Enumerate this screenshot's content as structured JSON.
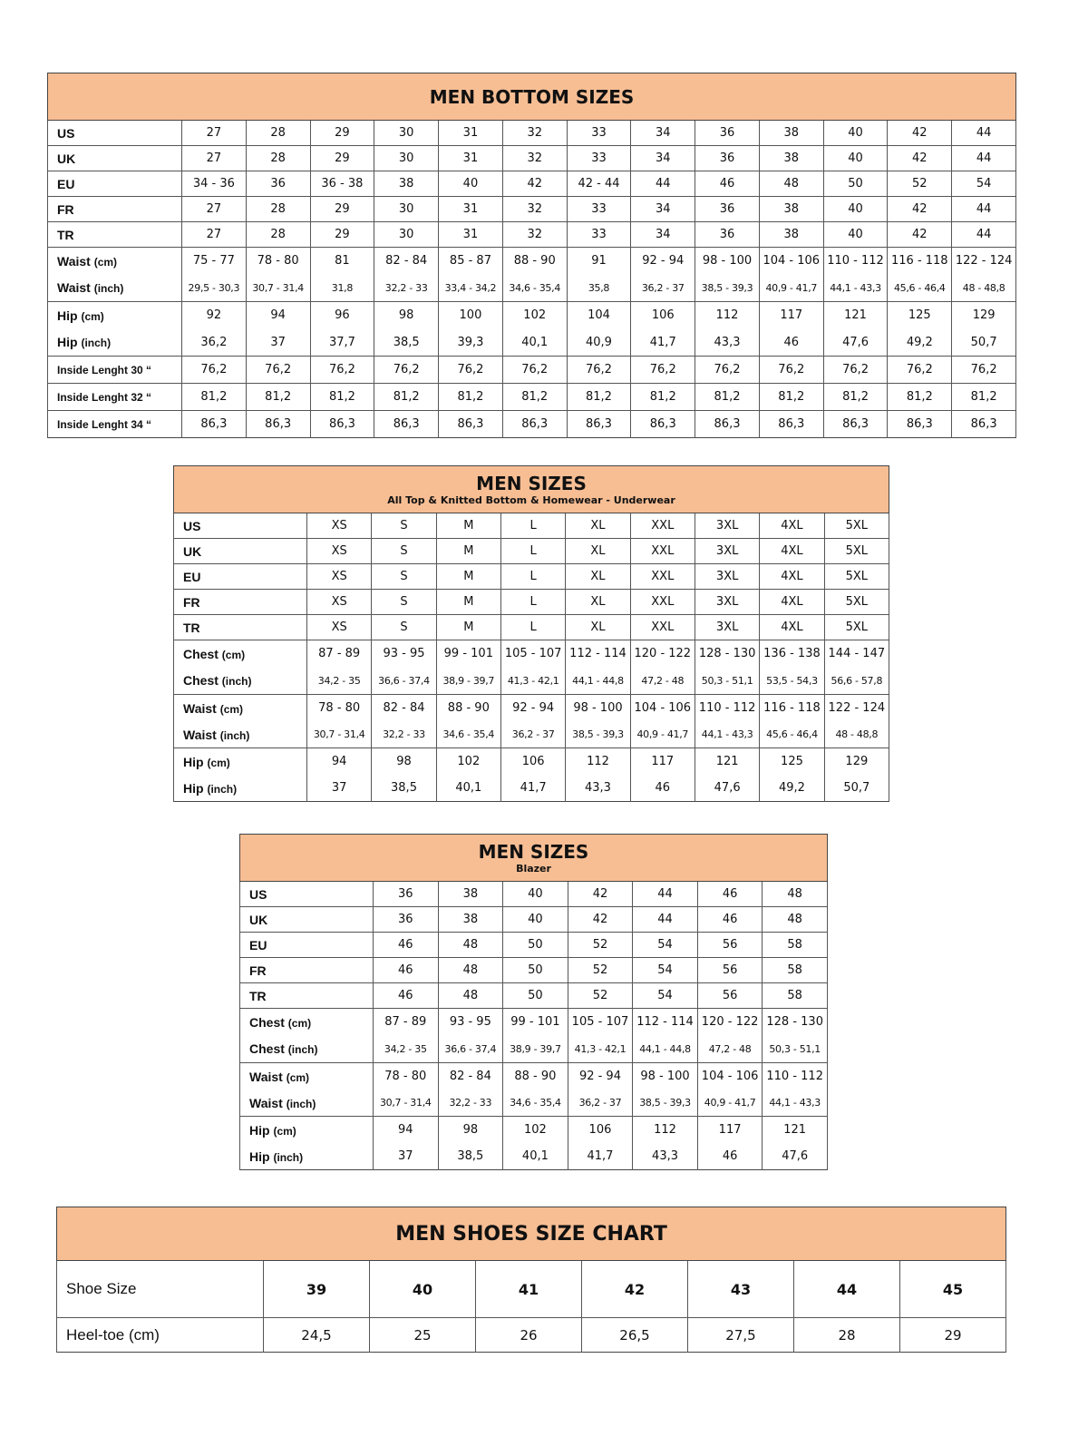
{
  "header_color": "#F7BE94",
  "tables": [
    {
      "title": "MEN BOTTOM SIZES",
      "subtitle": "",
      "rows": [
        {
          "label": "US",
          "unit": "",
          "values": [
            "27",
            "28",
            "29",
            "30",
            "31",
            "32",
            "33",
            "34",
            "36",
            "38",
            "40",
            "42",
            "44"
          ]
        },
        {
          "label": "UK",
          "unit": "",
          "values": [
            "27",
            "28",
            "29",
            "30",
            "31",
            "32",
            "33",
            "34",
            "36",
            "38",
            "40",
            "42",
            "44"
          ]
        },
        {
          "label": "EU",
          "unit": "",
          "values": [
            "34 - 36",
            "36",
            "36 - 38",
            "38",
            "40",
            "42",
            "42 - 44",
            "44",
            "46",
            "48",
            "50",
            "52",
            "54"
          ]
        },
        {
          "label": "FR",
          "unit": "",
          "values": [
            "27",
            "28",
            "29",
            "30",
            "31",
            "32",
            "33",
            "34",
            "36",
            "38",
            "40",
            "42",
            "44"
          ]
        },
        {
          "label": "TR",
          "unit": "",
          "values": [
            "27",
            "28",
            "29",
            "30",
            "31",
            "32",
            "33",
            "34",
            "36",
            "38",
            "40",
            "42",
            "44"
          ]
        },
        {
          "label": "Waist",
          "unit": "(cm)",
          "values": [
            "75 - 77",
            "78 - 80",
            "81",
            "82 - 84",
            "85 - 87",
            "88 - 90",
            "91",
            "92 - 94",
            "98 - 100",
            "104 - 106",
            "110 - 112",
            "116 - 118",
            "122 - 124"
          ]
        },
        {
          "label": "Waist",
          "unit": "(inch)",
          "values": [
            "29,5 - 30,3",
            "30,7 - 31,4",
            "31,8",
            "32,2 - 33",
            "33,4 - 34,2",
            "34,6 - 35,4",
            "35,8",
            "36,2 - 37",
            "38,5 - 39,3",
            "40,9 - 41,7",
            "44,1 - 43,3",
            "45,6 - 46,4",
            "48 - 48,8"
          ]
        },
        {
          "label": "Hip",
          "unit": "(cm)",
          "values": [
            "92",
            "94",
            "96",
            "98",
            "100",
            "102",
            "104",
            "106",
            "112",
            "117",
            "121",
            "125",
            "129"
          ]
        },
        {
          "label": "Hip",
          "unit": "(inch)",
          "values": [
            "36,2",
            "37",
            "37,7",
            "38,5",
            "39,3",
            "40,1",
            "40,9",
            "41,7",
            "43,3",
            "46",
            "47,6",
            "49,2",
            "50,7"
          ]
        },
        {
          "label": "Inside Lenght 30 “",
          "unit": "",
          "values": [
            "76,2",
            "76,2",
            "76,2",
            "76,2",
            "76,2",
            "76,2",
            "76,2",
            "76,2",
            "76,2",
            "76,2",
            "76,2",
            "76,2",
            "76,2"
          ]
        },
        {
          "label": "Inside Lenght 32 “",
          "unit": "",
          "values": [
            "81,2",
            "81,2",
            "81,2",
            "81,2",
            "81,2",
            "81,2",
            "81,2",
            "81,2",
            "81,2",
            "81,2",
            "81,2",
            "81,2",
            "81,2"
          ]
        },
        {
          "label": "Inside Lenght 34 “",
          "unit": "",
          "values": [
            "86,3",
            "86,3",
            "86,3",
            "86,3",
            "86,3",
            "86,3",
            "86,3",
            "86,3",
            "86,3",
            "86,3",
            "86,3",
            "86,3",
            "86,3"
          ]
        }
      ]
    },
    {
      "title": "MEN SIZES",
      "subtitle": "All Top & Knitted Bottom & Homewear - Underwear",
      "rows": [
        {
          "label": "US",
          "unit": "",
          "values": [
            "XS",
            "S",
            "M",
            "L",
            "XL",
            "XXL",
            "3XL",
            "4XL",
            "5XL"
          ]
        },
        {
          "label": "UK",
          "unit": "",
          "values": [
            "XS",
            "S",
            "M",
            "L",
            "XL",
            "XXL",
            "3XL",
            "4XL",
            "5XL"
          ]
        },
        {
          "label": "EU",
          "unit": "",
          "values": [
            "XS",
            "S",
            "M",
            "L",
            "XL",
            "XXL",
            "3XL",
            "4XL",
            "5XL"
          ]
        },
        {
          "label": "FR",
          "unit": "",
          "values": [
            "XS",
            "S",
            "M",
            "L",
            "XL",
            "XXL",
            "3XL",
            "4XL",
            "5XL"
          ]
        },
        {
          "label": "TR",
          "unit": "",
          "values": [
            "XS",
            "S",
            "M",
            "L",
            "XL",
            "XXL",
            "3XL",
            "4XL",
            "5XL"
          ]
        },
        {
          "label": "Chest",
          "unit": "(cm)",
          "values": [
            "87 - 89",
            "93 - 95",
            "99 - 101",
            "105 - 107",
            "112 - 114",
            "120 - 122",
            "128 - 130",
            "136 - 138",
            "144 - 147"
          ]
        },
        {
          "label": "Chest",
          "unit": "(inch)",
          "values": [
            "34,2 - 35",
            "36,6 - 37,4",
            "38,9 - 39,7",
            "41,3 - 42,1",
            "44,1 - 44,8",
            "47,2 - 48",
            "50,3 - 51,1",
            "53,5 - 54,3",
            "56,6 - 57,8"
          ]
        },
        {
          "label": "Waist",
          "unit": "(cm)",
          "values": [
            "78 - 80",
            "82 - 84",
            "88 - 90",
            "92 - 94",
            "98 - 100",
            "104 - 106",
            "110 - 112",
            "116 - 118",
            "122 - 124"
          ]
        },
        {
          "label": "Waist",
          "unit": "(inch)",
          "values": [
            "30,7 - 31,4",
            "32,2 - 33",
            "34,6 - 35,4",
            "36,2 - 37",
            "38,5 - 39,3",
            "40,9 - 41,7",
            "44,1 - 43,3",
            "45,6 - 46,4",
            "48 - 48,8"
          ]
        },
        {
          "label": "Hip",
          "unit": "(cm)",
          "values": [
            "94",
            "98",
            "102",
            "106",
            "112",
            "117",
            "121",
            "125",
            "129"
          ]
        },
        {
          "label": "Hip",
          "unit": "(inch)",
          "values": [
            "37",
            "38,5",
            "40,1",
            "41,7",
            "43,3",
            "46",
            "47,6",
            "49,2",
            "50,7"
          ]
        }
      ]
    },
    {
      "title": "MEN SIZES",
      "subtitle": "Blazer",
      "rows": [
        {
          "label": "US",
          "unit": "",
          "values": [
            "36",
            "38",
            "40",
            "42",
            "44",
            "46",
            "48"
          ]
        },
        {
          "label": "UK",
          "unit": "",
          "values": [
            "36",
            "38",
            "40",
            "42",
            "44",
            "46",
            "48"
          ]
        },
        {
          "label": "EU",
          "unit": "",
          "values": [
            "46",
            "48",
            "50",
            "52",
            "54",
            "56",
            "58"
          ]
        },
        {
          "label": "FR",
          "unit": "",
          "values": [
            "46",
            "48",
            "50",
            "52",
            "54",
            "56",
            "58"
          ]
        },
        {
          "label": "TR",
          "unit": "",
          "values": [
            "46",
            "48",
            "50",
            "52",
            "54",
            "56",
            "58"
          ]
        },
        {
          "label": "Chest",
          "unit": "(cm)",
          "values": [
            "87 - 89",
            "93 - 95",
            "99 - 101",
            "105 - 107",
            "112 - 114",
            "120 - 122",
            "128 - 130"
          ]
        },
        {
          "label": "Chest",
          "unit": "(inch)",
          "values": [
            "34,2 - 35",
            "36,6 - 37,4",
            "38,9 - 39,7",
            "41,3 - 42,1",
            "44,1 - 44,8",
            "47,2 - 48",
            "50,3 - 51,1"
          ]
        },
        {
          "label": "Waist",
          "unit": "(cm)",
          "values": [
            "78 - 80",
            "82 - 84",
            "88 - 90",
            "92 - 94",
            "98 - 100",
            "104 - 106",
            "110 - 112"
          ]
        },
        {
          "label": "Waist",
          "unit": "(inch)",
          "values": [
            "30,7 - 31,4",
            "32,2 - 33",
            "34,6 - 35,4",
            "36,2 - 37",
            "38,5 - 39,3",
            "40,9 - 41,7",
            "44,1 - 43,3"
          ]
        },
        {
          "label": "Hip",
          "unit": "(cm)",
          "values": [
            "94",
            "98",
            "102",
            "106",
            "112",
            "117",
            "121"
          ]
        },
        {
          "label": "Hip",
          "unit": "(inch)",
          "values": [
            "37",
            "38,5",
            "40,1",
            "41,7",
            "43,3",
            "46",
            "47,6"
          ]
        }
      ]
    },
    {
      "title": "MEN SHOES SIZE CHART",
      "subtitle": "",
      "rows": [
        {
          "label": "Shoe Size",
          "unit": "",
          "values": [
            "39",
            "40",
            "41",
            "42",
            "43",
            "44",
            "45"
          ]
        },
        {
          "label": "Heel-toe (cm)",
          "unit": "",
          "values": [
            "24,5",
            "25",
            "26",
            "26,5",
            "27,5",
            "28",
            "29"
          ]
        }
      ]
    }
  ]
}
